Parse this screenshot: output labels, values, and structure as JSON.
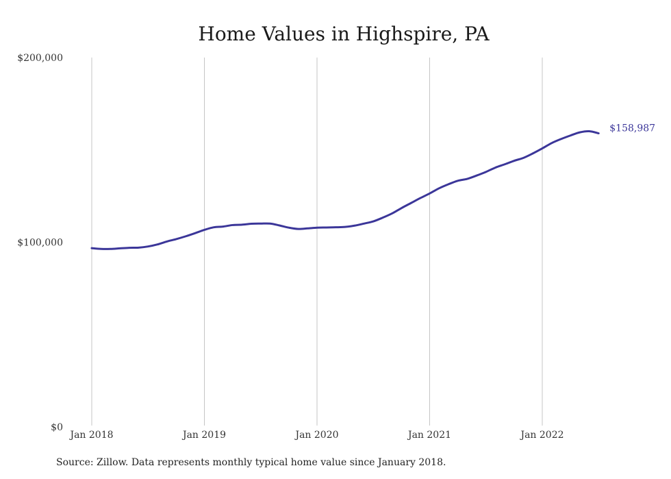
{
  "chart_data": {
    "type": "line",
    "title": "Home Values in Highspire, PA",
    "xlabel": "",
    "ylabel": "",
    "ylim": [
      0,
      200000
    ],
    "yticks": [
      {
        "value": 0,
        "label": "$0"
      },
      {
        "value": 100000,
        "label": "$100,000"
      },
      {
        "value": 200000,
        "label": "$200,000"
      }
    ],
    "xticks": [
      {
        "value": "2018-01",
        "label": "Jan 2018"
      },
      {
        "value": "2019-01",
        "label": "Jan 2019"
      },
      {
        "value": "2020-01",
        "label": "Jan 2020"
      },
      {
        "value": "2021-01",
        "label": "Jan 2021"
      },
      {
        "value": "2022-01",
        "label": "Jan 2022"
      }
    ],
    "grid": "vertical",
    "line_color": "#3b3699",
    "end_label": "$158,987",
    "series": [
      {
        "x": [
          "2018-01",
          "2018-02",
          "2018-03",
          "2018-04",
          "2018-05",
          "2018-06",
          "2018-07",
          "2018-08",
          "2018-09",
          "2018-10",
          "2018-11",
          "2018-12",
          "2019-01",
          "2019-02",
          "2019-03",
          "2019-04",
          "2019-05",
          "2019-06",
          "2019-07",
          "2019-08",
          "2019-09",
          "2019-10",
          "2019-11",
          "2019-12",
          "2020-01",
          "2020-02",
          "2020-03",
          "2020-04",
          "2020-05",
          "2020-06",
          "2020-07",
          "2020-08",
          "2020-09",
          "2020-10",
          "2020-11",
          "2020-12",
          "2021-01",
          "2021-02",
          "2021-03",
          "2021-04",
          "2021-05",
          "2021-06",
          "2021-07",
          "2021-08",
          "2021-09",
          "2021-10",
          "2021-11",
          "2021-12",
          "2022-01",
          "2022-02",
          "2022-03",
          "2022-04",
          "2022-05",
          "2022-06",
          "2022-07"
        ],
        "values": [
          96800,
          96400,
          96400,
          96700,
          97000,
          97100,
          97700,
          98800,
          100400,
          101700,
          103200,
          104900,
          106700,
          108100,
          108500,
          109300,
          109500,
          110000,
          110100,
          110100,
          109100,
          107900,
          107200,
          107500,
          107900,
          108000,
          108100,
          108300,
          109000,
          110100,
          111300,
          113300,
          115600,
          118500,
          121200,
          123900,
          126400,
          129200,
          131400,
          133300,
          134300,
          136100,
          138100,
          140400,
          142200,
          144100,
          145700,
          148100,
          150800,
          153700,
          155900,
          157800,
          159500,
          160100,
          158987
        ]
      }
    ]
  },
  "source_text": "Source: Zillow. Data represents monthly typical home value since January 2018."
}
